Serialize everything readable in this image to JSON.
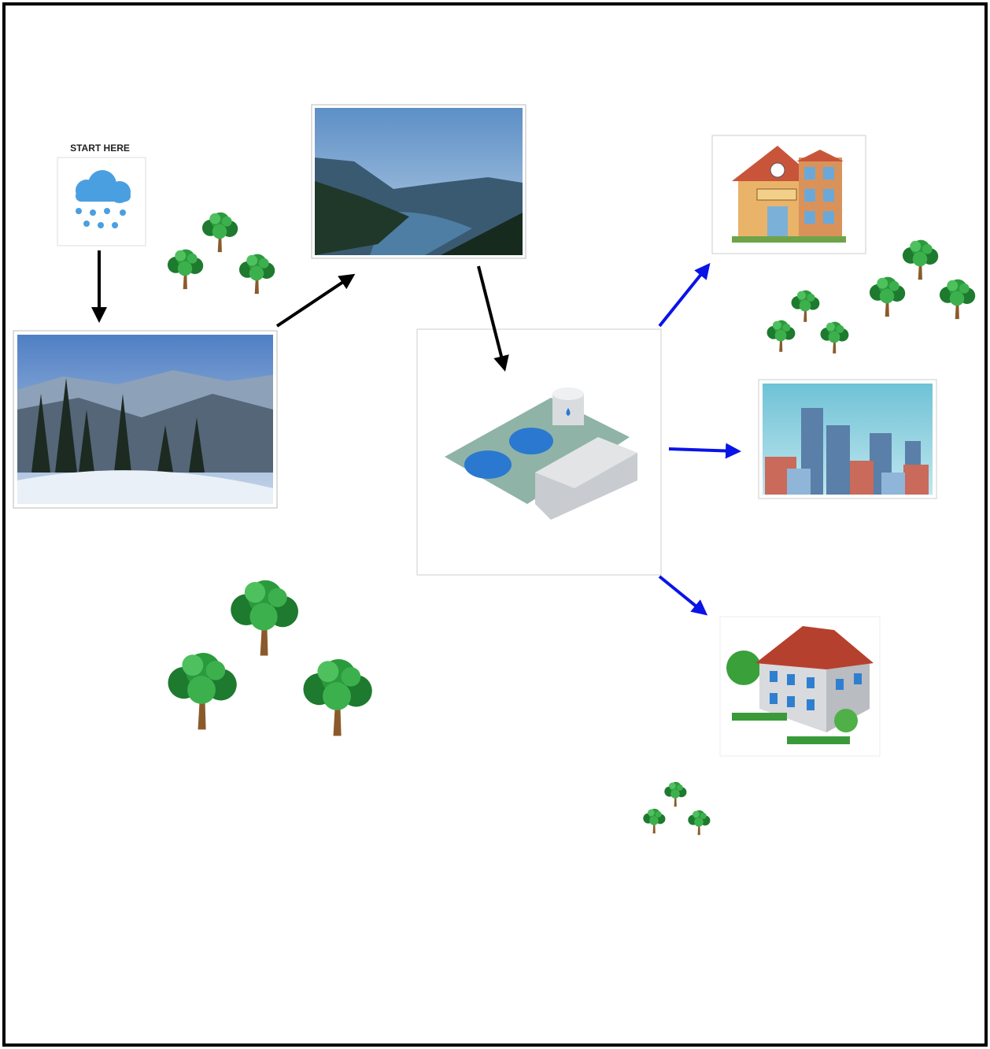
{
  "start_label": "START HERE"
}
